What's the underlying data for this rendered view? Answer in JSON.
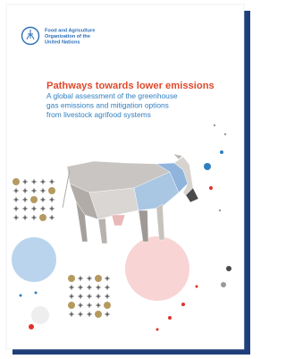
{
  "header": {
    "organization": [
      "Food and Agriculture",
      "Organization of the",
      "United Nations"
    ]
  },
  "title": "Pathways towards lower emissions",
  "subtitle": [
    "A global assessment of the greenhouse",
    "gas emissions and mitigation options",
    "from livestock agrifood systems"
  ]
}
